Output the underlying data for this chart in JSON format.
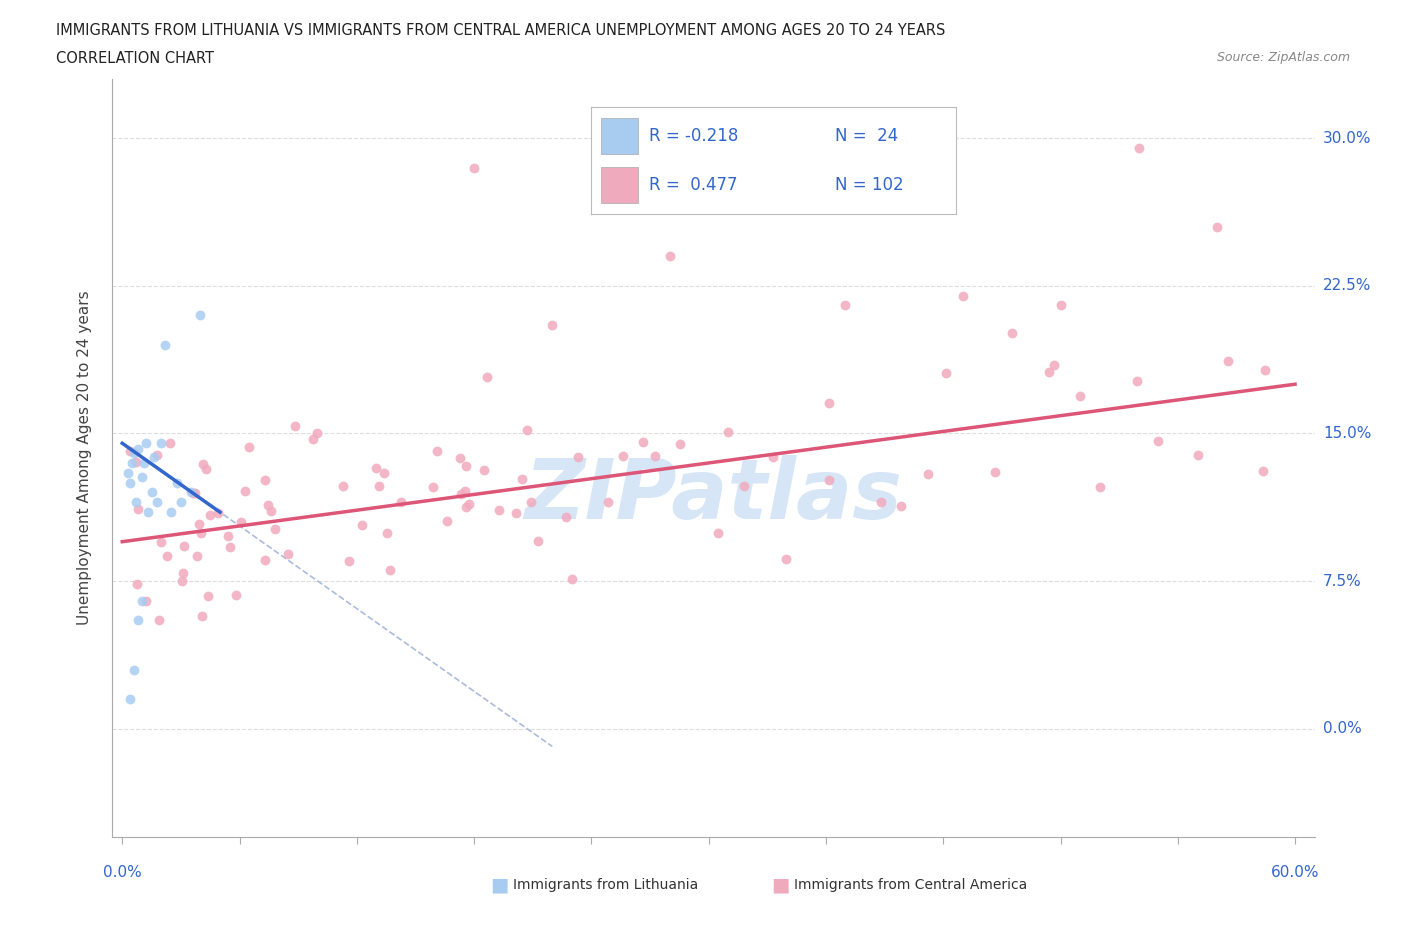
{
  "title_line1": "IMMIGRANTS FROM LITHUANIA VS IMMIGRANTS FROM CENTRAL AMERICA UNEMPLOYMENT AMONG AGES 20 TO 24 YEARS",
  "title_line2": "CORRELATION CHART",
  "source_text": "Source: ZipAtlas.com",
  "ylabel": "Unemployment Among Ages 20 to 24 years",
  "ytick_pcts": [
    0.0,
    7.5,
    15.0,
    22.5,
    30.0
  ],
  "xlim": [
    0.0,
    60.0
  ],
  "ylim": [
    -5.0,
    33.0
  ],
  "color_lithuania": "#a8ccf0",
  "color_central_america": "#f0aabe",
  "color_line_lithuania": "#3366cc",
  "color_line_ca": "#dd5577",
  "color_grid": "#dddddd",
  "color_dashed": "#aabbdd",
  "color_text_blue": "#3366cc",
  "color_axis": "#aaaaaa",
  "watermark_color": "#cce0f5",
  "legend_label_1": "Immigrants from Lithuania",
  "legend_label_2": "Immigrants from Central America",
  "lit_x": [
    0.3,
    0.4,
    0.5,
    0.6,
    0.7,
    0.8,
    0.9,
    1.0,
    1.1,
    1.2,
    1.3,
    1.5,
    1.6,
    1.8,
    2.0,
    2.2,
    2.5,
    2.8,
    3.0,
    3.2,
    3.5,
    4.0,
    4.5,
    5.0
  ],
  "lit_y": [
    13.0,
    12.5,
    11.5,
    13.5,
    12.0,
    14.0,
    11.0,
    13.2,
    12.8,
    14.5,
    13.5,
    12.5,
    14.0,
    11.5,
    14.5,
    13.0,
    12.0,
    11.5,
    11.0,
    19.5,
    12.5,
    14.5,
    6.5,
    21.0
  ],
  "reg_lit_x0": 0.0,
  "reg_lit_y0": 14.5,
  "reg_lit_x1": 5.0,
  "reg_lit_y1": 11.0,
  "reg_ca_x0": 0.0,
  "reg_ca_y0": 9.5,
  "reg_ca_x1": 60.0,
  "reg_ca_y1": 17.5,
  "dash_x0": 0.0,
  "dash_y0": 14.5,
  "dash_x1": 22.0,
  "dash_y1": -5.0,
  "n_xticks": 11
}
